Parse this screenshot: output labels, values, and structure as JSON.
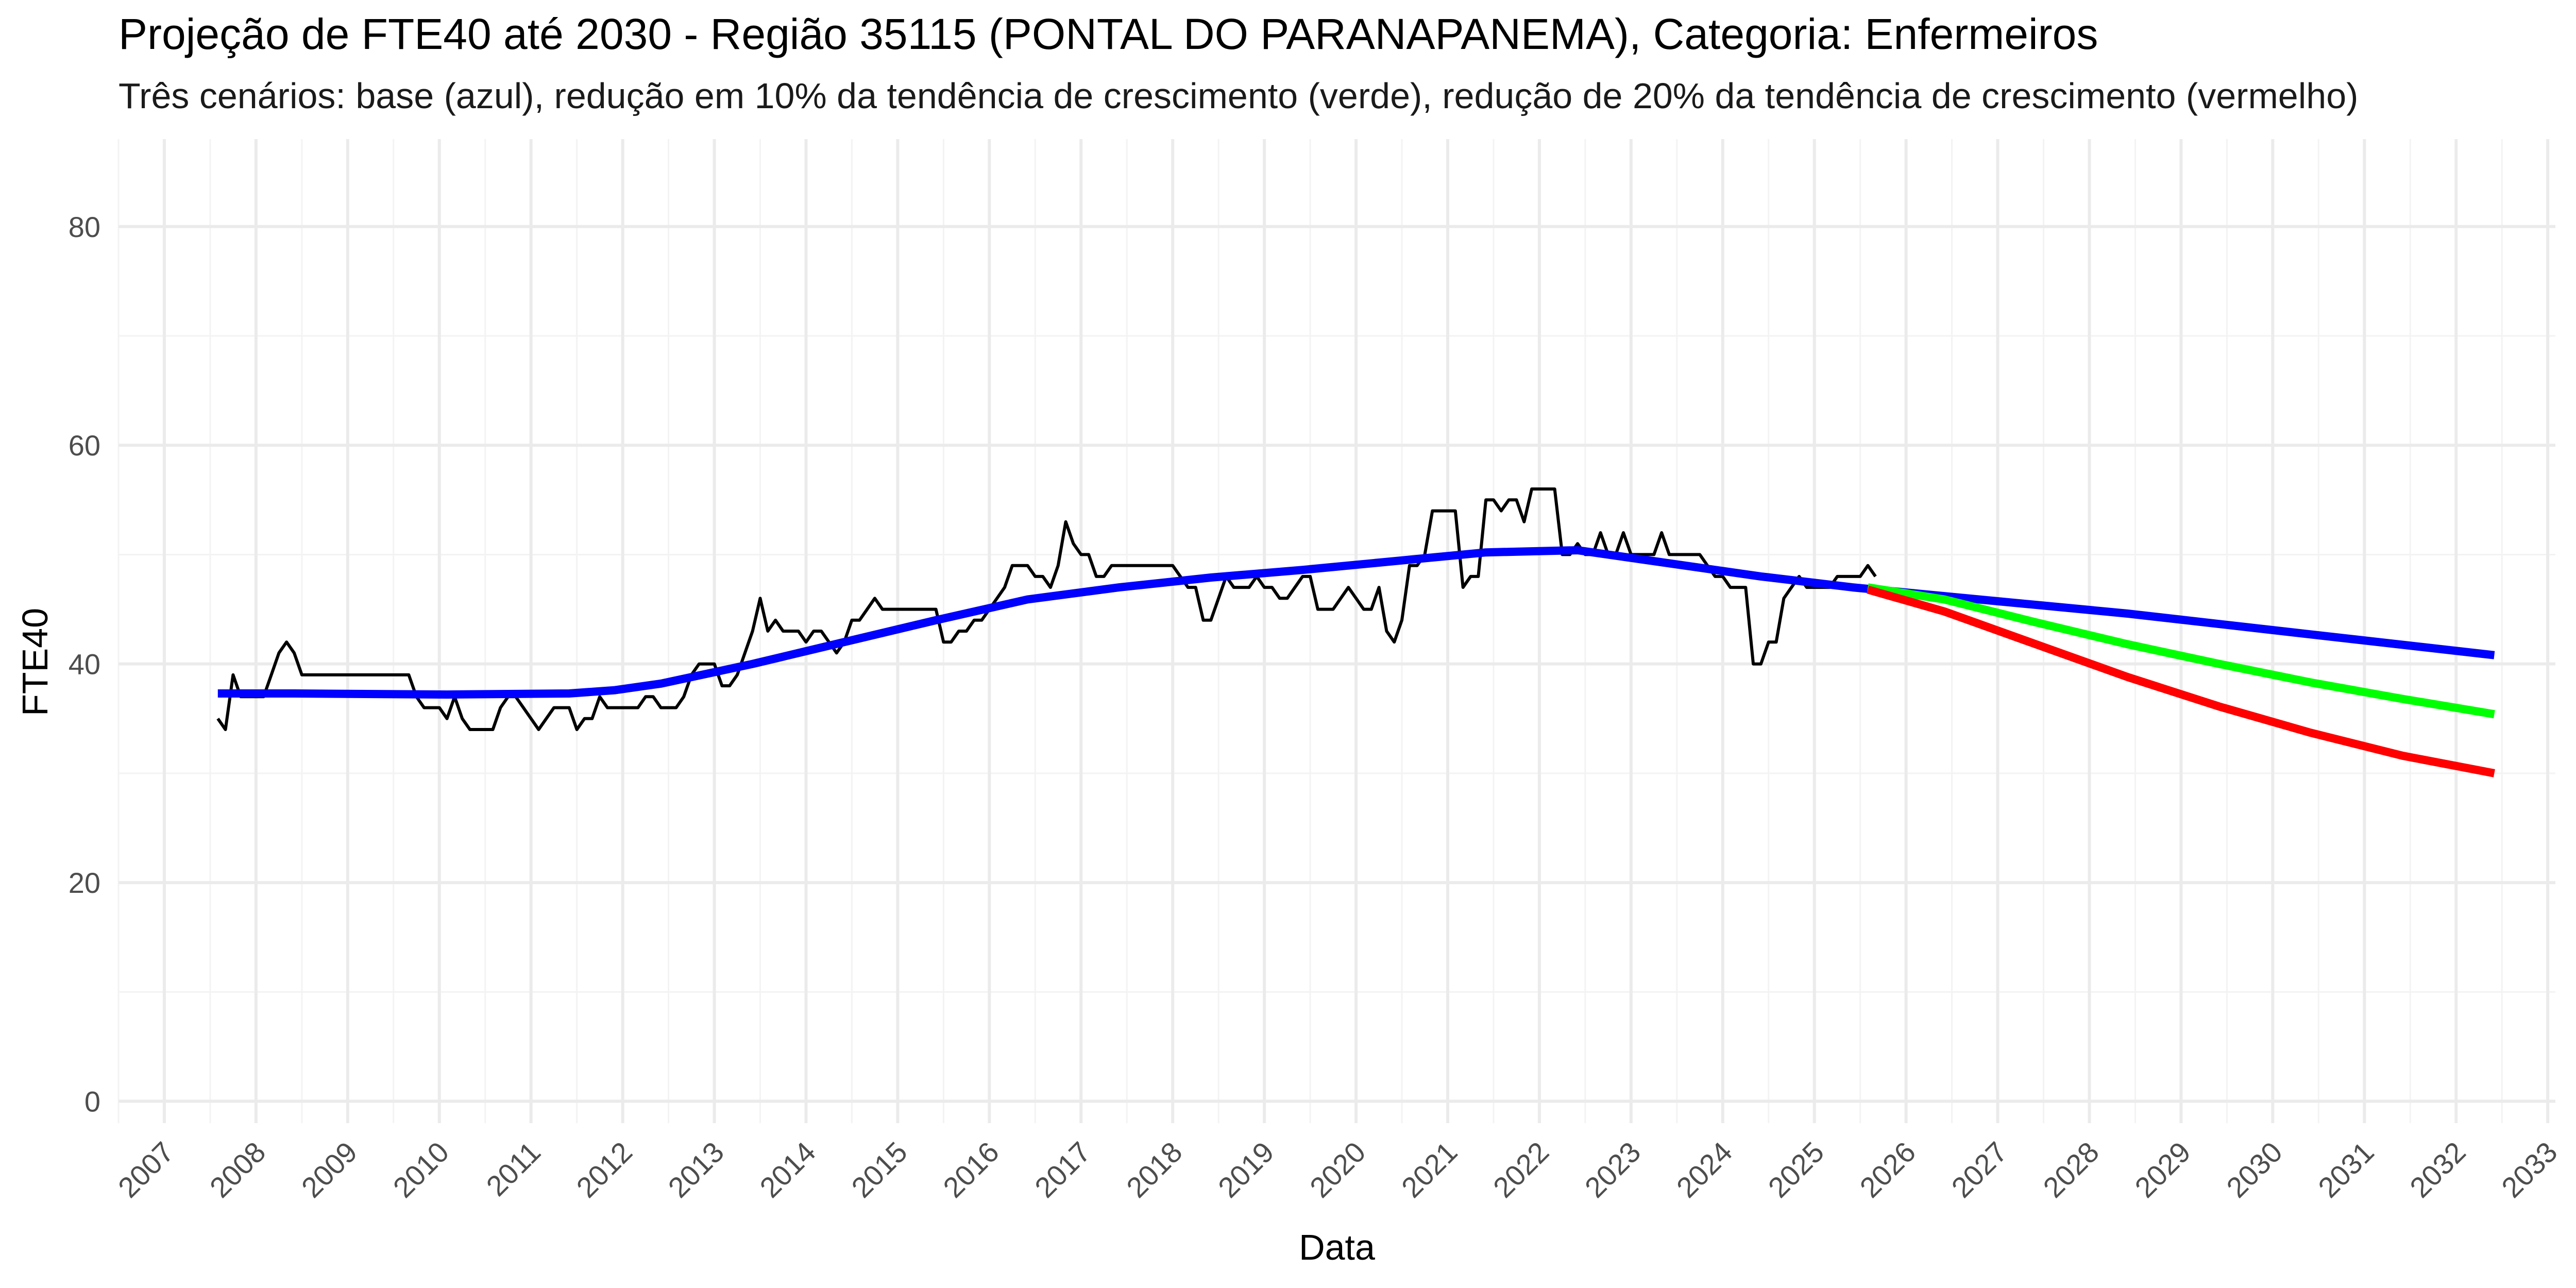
{
  "chart_data": {
    "type": "line",
    "title": "Projeção de FTE40 até 2030 - Região 35115 (PONTAL DO PARANAPANEMA), Categoria: Enfermeiros",
    "subtitle": "Três cenários: base (azul), redução em 10% da tendência de crescimento (verde), redução de 20% da tendência de crescimento (vermelho)",
    "xlabel": "Data",
    "ylabel": "FTE40",
    "xlim": [
      "2006-07-01",
      "2033-02-01"
    ],
    "ylim": [
      -2,
      88
    ],
    "y_ticks": [
      0,
      20,
      40,
      60,
      80
    ],
    "x_ticks": [
      "2007",
      "2008",
      "2009",
      "2010",
      "2011",
      "2012",
      "2013",
      "2014",
      "2015",
      "2016",
      "2017",
      "2018",
      "2019",
      "2020",
      "2021",
      "2022",
      "2023",
      "2024",
      "2025",
      "2026",
      "2027",
      "2028",
      "2029",
      "2030",
      "2031",
      "2032",
      "2033"
    ],
    "grid": true,
    "legend": "none",
    "series": [
      {
        "color": "#000000",
        "role": "observed",
        "points": [
          [
            "2007-08",
            35
          ],
          [
            "2007-09",
            34
          ],
          [
            "2007-10",
            39
          ],
          [
            "2007-11",
            37
          ],
          [
            "2007-12",
            37
          ],
          [
            "2008-01",
            37
          ],
          [
            "2008-02",
            37
          ],
          [
            "2008-03",
            39
          ],
          [
            "2008-04",
            41
          ],
          [
            "2008-05",
            42
          ],
          [
            "2008-06",
            41
          ],
          [
            "2008-07",
            39
          ],
          [
            "2008-08",
            39
          ],
          [
            "2008-09",
            39
          ],
          [
            "2009-03",
            39
          ],
          [
            "2009-09",
            39
          ],
          [
            "2009-10",
            37
          ],
          [
            "2009-11",
            36
          ],
          [
            "2009-12",
            36
          ],
          [
            "2010-01",
            36
          ],
          [
            "2010-02",
            35
          ],
          [
            "2010-03",
            37
          ],
          [
            "2010-04",
            35
          ],
          [
            "2010-05",
            34
          ],
          [
            "2010-08",
            34
          ],
          [
            "2010-09",
            36
          ],
          [
            "2010-10",
            37
          ],
          [
            "2010-11",
            37
          ],
          [
            "2011-01",
            35
          ],
          [
            "2011-02",
            34
          ],
          [
            "2011-04",
            36
          ],
          [
            "2011-06",
            36
          ],
          [
            "2011-07",
            34
          ],
          [
            "2011-08",
            35
          ],
          [
            "2011-09",
            35
          ],
          [
            "2011-10",
            37
          ],
          [
            "2011-11",
            36
          ],
          [
            "2012-03",
            36
          ],
          [
            "2012-04",
            37
          ],
          [
            "2012-05",
            37
          ],
          [
            "2012-06",
            36
          ],
          [
            "2012-08",
            36
          ],
          [
            "2012-09",
            37
          ],
          [
            "2012-10",
            39
          ],
          [
            "2012-11",
            40
          ],
          [
            "2013-01",
            40
          ],
          [
            "2013-02",
            38
          ],
          [
            "2013-03",
            38
          ],
          [
            "2013-04",
            39
          ],
          [
            "2013-05",
            41
          ],
          [
            "2013-06",
            43
          ],
          [
            "2013-07",
            46
          ],
          [
            "2013-08",
            43
          ],
          [
            "2013-09",
            44
          ],
          [
            "2013-10",
            43
          ],
          [
            "2013-12",
            43
          ],
          [
            "2014-01",
            42
          ],
          [
            "2014-02",
            43
          ],
          [
            "2014-03",
            43
          ],
          [
            "2014-04",
            42
          ],
          [
            "2014-05",
            41
          ],
          [
            "2014-06",
            42
          ],
          [
            "2014-07",
            44
          ],
          [
            "2014-08",
            44
          ],
          [
            "2014-09",
            45
          ],
          [
            "2014-10",
            46
          ],
          [
            "2014-11",
            45
          ],
          [
            "2015-06",
            45
          ],
          [
            "2015-07",
            42
          ],
          [
            "2015-08",
            42
          ],
          [
            "2015-09",
            43
          ],
          [
            "2015-10",
            43
          ],
          [
            "2015-11",
            44
          ],
          [
            "2015-12",
            44
          ],
          [
            "2016-01",
            45
          ],
          [
            "2016-02",
            46
          ],
          [
            "2016-03",
            47
          ],
          [
            "2016-04",
            49
          ],
          [
            "2016-06",
            49
          ],
          [
            "2016-07",
            48
          ],
          [
            "2016-08",
            48
          ],
          [
            "2016-09",
            47
          ],
          [
            "2016-10",
            49
          ],
          [
            "2016-11",
            53
          ],
          [
            "2016-12",
            51
          ],
          [
            "2017-01",
            50
          ],
          [
            "2017-02",
            50
          ],
          [
            "2017-03",
            48
          ],
          [
            "2017-04",
            48
          ],
          [
            "2017-05",
            49
          ],
          [
            "2017-07",
            49
          ],
          [
            "2018-01",
            49
          ],
          [
            "2018-02",
            48
          ],
          [
            "2018-03",
            47
          ],
          [
            "2018-04",
            47
          ],
          [
            "2018-05",
            44
          ],
          [
            "2018-06",
            44
          ],
          [
            "2018-07",
            46
          ],
          [
            "2018-08",
            48
          ],
          [
            "2018-09",
            47
          ],
          [
            "2018-10",
            47
          ],
          [
            "2018-11",
            47
          ],
          [
            "2018-12",
            48
          ],
          [
            "2019-01",
            47
          ],
          [
            "2019-02",
            47
          ],
          [
            "2019-03",
            46
          ],
          [
            "2019-04",
            46
          ],
          [
            "2019-05",
            47
          ],
          [
            "2019-06",
            48
          ],
          [
            "2019-07",
            48
          ],
          [
            "2019-08",
            45
          ],
          [
            "2019-10",
            45
          ],
          [
            "2019-11",
            46
          ],
          [
            "2019-12",
            47
          ],
          [
            "2020-01",
            46
          ],
          [
            "2020-02",
            45
          ],
          [
            "2020-03",
            45
          ],
          [
            "2020-04",
            47
          ],
          [
            "2020-05",
            43
          ],
          [
            "2020-06",
            42
          ],
          [
            "2020-07",
            44
          ],
          [
            "2020-08",
            49
          ],
          [
            "2020-09",
            49
          ],
          [
            "2020-10",
            50
          ],
          [
            "2020-11",
            54
          ],
          [
            "2021-02",
            54
          ],
          [
            "2021-03",
            47
          ],
          [
            "2021-04",
            48
          ],
          [
            "2021-05",
            48
          ],
          [
            "2021-06",
            55
          ],
          [
            "2021-07",
            55
          ],
          [
            "2021-08",
            54
          ],
          [
            "2021-09",
            55
          ],
          [
            "2021-10",
            55
          ],
          [
            "2021-11",
            53
          ],
          [
            "2021-12",
            56
          ],
          [
            "2022-03",
            56
          ],
          [
            "2022-04",
            50
          ],
          [
            "2022-05",
            50
          ],
          [
            "2022-06",
            51
          ],
          [
            "2022-07",
            50
          ],
          [
            "2022-08",
            50
          ],
          [
            "2022-09",
            52
          ],
          [
            "2022-10",
            50
          ],
          [
            "2022-11",
            50
          ],
          [
            "2022-12",
            52
          ],
          [
            "2023-01",
            50
          ],
          [
            "2023-02",
            50
          ],
          [
            "2023-03",
            50
          ],
          [
            "2023-04",
            50
          ],
          [
            "2023-05",
            52
          ],
          [
            "2023-06",
            50
          ],
          [
            "2023-10",
            50
          ],
          [
            "2023-11",
            49
          ],
          [
            "2023-12",
            48
          ],
          [
            "2024-01",
            48
          ],
          [
            "2024-02",
            47
          ],
          [
            "2024-04",
            47
          ],
          [
            "2024-05",
            40
          ],
          [
            "2024-06",
            40
          ],
          [
            "2024-07",
            42
          ],
          [
            "2024-08",
            42
          ],
          [
            "2024-09",
            46
          ],
          [
            "2024-10",
            47
          ],
          [
            "2024-11",
            48
          ],
          [
            "2024-12",
            47
          ],
          [
            "2025-03",
            47
          ],
          [
            "2025-04",
            48
          ],
          [
            "2025-07",
            48
          ],
          [
            "2025-08",
            49
          ],
          [
            "2025-09",
            48
          ]
        ]
      },
      {
        "color": "#0000ff",
        "role": "base",
        "points": [
          [
            "2007-08",
            37.3
          ],
          [
            "2008-06",
            37.3
          ],
          [
            "2010-02",
            37.2
          ],
          [
            "2011-06",
            37.3
          ],
          [
            "2011-12",
            37.6
          ],
          [
            "2012-06",
            38.2
          ],
          [
            "2013-06",
            40.0
          ],
          [
            "2014-06",
            42.0
          ],
          [
            "2015-06",
            44.0
          ],
          [
            "2016-06",
            45.9
          ],
          [
            "2017-06",
            47.0
          ],
          [
            "2018-06",
            47.9
          ],
          [
            "2019-06",
            48.6
          ],
          [
            "2020-06",
            49.4
          ],
          [
            "2021-06",
            50.2
          ],
          [
            "2022-06",
            50.4
          ],
          [
            "2023-06",
            49.2
          ],
          [
            "2024-06",
            48.0
          ],
          [
            "2025-06",
            47.0
          ],
          [
            "2026-06",
            46.2
          ],
          [
            "2028-06",
            44.6
          ],
          [
            "2030-06",
            42.7
          ],
          [
            "2032-06",
            40.8
          ]
        ]
      },
      {
        "color": "#00ff00",
        "role": "reducao_10",
        "points": [
          [
            "2025-08",
            47.0
          ],
          [
            "2026-06",
            45.9
          ],
          [
            "2027-06",
            43.8
          ],
          [
            "2028-06",
            41.8
          ],
          [
            "2029-06",
            40.0
          ],
          [
            "2030-06",
            38.3
          ],
          [
            "2031-06",
            36.8
          ],
          [
            "2032-06",
            35.4
          ]
        ]
      },
      {
        "color": "#ff0000",
        "role": "reducao_20",
        "points": [
          [
            "2025-08",
            46.8
          ],
          [
            "2026-06",
            44.8
          ],
          [
            "2027-06",
            41.8
          ],
          [
            "2028-06",
            38.8
          ],
          [
            "2029-06",
            36.1
          ],
          [
            "2030-06",
            33.7
          ],
          [
            "2031-06",
            31.6
          ],
          [
            "2032-06",
            30.0
          ]
        ]
      }
    ]
  }
}
